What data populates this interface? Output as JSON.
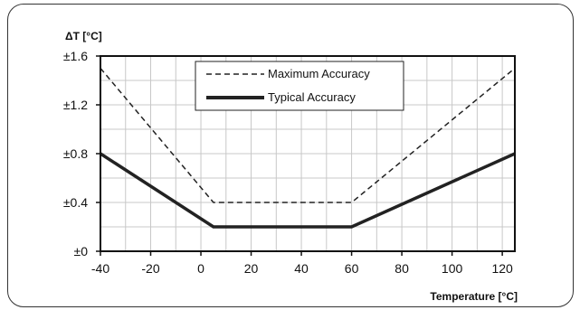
{
  "chart_data": {
    "type": "line",
    "title": "",
    "ylabel": "ΔT [°C]",
    "xlabel": "Temperature [°C]",
    "xlim": [
      -40,
      125
    ],
    "ylim": [
      0,
      1.6
    ],
    "x_ticks": [
      -40,
      -20,
      0,
      20,
      40,
      60,
      80,
      100,
      120
    ],
    "x_tick_labels": [
      "-40",
      "-20",
      "0",
      "20",
      "40",
      "60",
      "80",
      "100",
      "120"
    ],
    "y_ticks": [
      0,
      0.4,
      0.8,
      1.2,
      1.6
    ],
    "y_tick_labels": [
      "±0",
      "±0.4",
      "±0.8",
      "±1.2",
      "±1.6"
    ],
    "x_minor_step": 10,
    "y_minor_step": 0.2,
    "grid": true,
    "legend_position": "top-center",
    "series": [
      {
        "name": "Maximum Accuracy",
        "style": "dashed",
        "color": "#222222",
        "points": [
          [
            -40,
            1.5
          ],
          [
            5,
            0.4
          ],
          [
            60,
            0.4
          ],
          [
            125,
            1.5
          ]
        ]
      },
      {
        "name": "Typical Accuracy",
        "style": "solid-thick",
        "color": "#222222",
        "points": [
          [
            -40,
            0.8
          ],
          [
            5,
            0.2
          ],
          [
            60,
            0.2
          ],
          [
            125,
            0.8
          ]
        ]
      }
    ]
  }
}
